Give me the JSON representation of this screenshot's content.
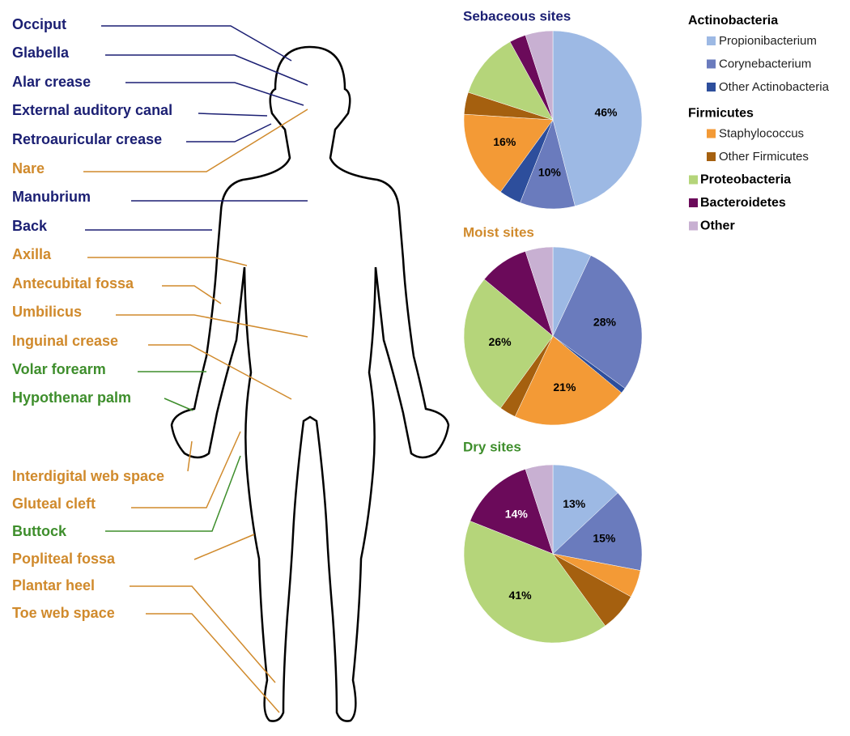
{
  "body_sites": [
    {
      "label": "Occiput",
      "color": "#1b1f73"
    },
    {
      "label": "Glabella",
      "color": "#1b1f73"
    },
    {
      "label": "Alar crease",
      "color": "#1b1f73"
    },
    {
      "label": "External auditory canal",
      "color": "#1b1f73"
    },
    {
      "label": "Retroauricular crease",
      "color": "#1b1f73"
    },
    {
      "label": "Nare",
      "color": "#d08a2c"
    },
    {
      "label": "Manubrium",
      "color": "#1b1f73"
    },
    {
      "label": "Back",
      "color": "#1b1f73"
    },
    {
      "label": "Axilla",
      "color": "#d08a2c"
    },
    {
      "label": "Antecubital fossa",
      "color": "#d08a2c"
    },
    {
      "label": "Umbilicus",
      "color": "#d08a2c"
    },
    {
      "label": "Inguinal crease",
      "color": "#d08a2c"
    },
    {
      "label": "Volar forearm",
      "color": "#3e8e2c"
    },
    {
      "label": "Hypothenar palm",
      "color": "#3e8e2c"
    },
    {
      "label": "Interdigital web space",
      "color": "#d08a2c"
    },
    {
      "label": "Gluteal cleft",
      "color": "#d08a2c"
    },
    {
      "label": "Buttock",
      "color": "#3e8e2c"
    },
    {
      "label": "Popliteal fossa",
      "color": "#d08a2c"
    },
    {
      "label": "Plantar heel",
      "color": "#d08a2c"
    },
    {
      "label": "Toe web space",
      "color": "#d08a2c"
    }
  ],
  "chart_data": [
    {
      "type": "pie",
      "title": "Sebaceous sites",
      "title_color": "#1b1f73",
      "categories": [
        "Propionibacterium",
        "Corynebacterium",
        "Other Actinobacteria",
        "Staphylococcus",
        "Other Firmicutes",
        "Proteobacteria",
        "Bacteroidetes",
        "Other"
      ],
      "colors": [
        "#9db9e4",
        "#6a7bbd",
        "#2d4e9c",
        "#f39a36",
        "#a5600f",
        "#b5d57a",
        "#6b0a5a",
        "#c8b0d2"
      ],
      "values": [
        46,
        10,
        4,
        16,
        4,
        12,
        3,
        5
      ],
      "value_labels": [
        "46%",
        "10%",
        null,
        "16%",
        null,
        null,
        null,
        null
      ]
    },
    {
      "type": "pie",
      "title": "Moist sites",
      "title_color": "#d08a2c",
      "categories": [
        "Propionibacterium",
        "Corynebacterium",
        "Other Actinobacteria",
        "Staphylococcus",
        "Other Firmicutes",
        "Proteobacteria",
        "Bacteroidetes",
        "Other"
      ],
      "colors": [
        "#9db9e4",
        "#6a7bbd",
        "#2d4e9c",
        "#f39a36",
        "#a5600f",
        "#b5d57a",
        "#6b0a5a",
        "#c8b0d2"
      ],
      "values": [
        7,
        28,
        1,
        21,
        3,
        26,
        9,
        5
      ],
      "value_labels": [
        null,
        "28%",
        null,
        "21%",
        null,
        "26%",
        null,
        null
      ]
    },
    {
      "type": "pie",
      "title": "Dry sites",
      "title_color": "#3e8e2c",
      "categories": [
        "Propionibacterium",
        "Corynebacterium",
        "Other Actinobacteria",
        "Staphylococcus",
        "Other Firmicutes",
        "Proteobacteria",
        "Bacteroidetes",
        "Other"
      ],
      "colors": [
        "#9db9e4",
        "#6a7bbd",
        "#2d4e9c",
        "#f39a36",
        "#a5600f",
        "#b5d57a",
        "#6b0a5a",
        "#c8b0d2"
      ],
      "values": [
        13,
        15,
        0,
        5,
        7,
        41,
        14,
        5
      ],
      "value_labels": [
        "13%",
        "15%",
        null,
        null,
        null,
        "41%",
        "14%",
        null
      ]
    }
  ],
  "legend": {
    "groups": [
      {
        "title": "Actinobacteria",
        "items": [
          "Propionibacterium",
          "Corynebacterium",
          "Other Actinobacteria"
        ]
      },
      {
        "title": "Firmicutes",
        "items": [
          "Staphylococcus",
          "Other Firmicutes"
        ]
      }
    ],
    "items": [
      "Proteobacteria",
      "Bacteroidetes",
      "Other"
    ]
  }
}
